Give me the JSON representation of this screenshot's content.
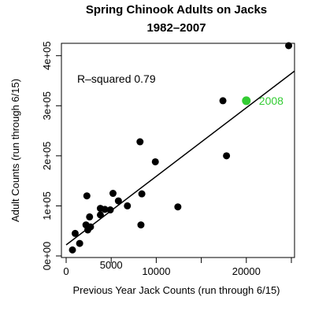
{
  "chart_data": {
    "type": "scatter",
    "title": "Spring Chinook Adults on Jacks",
    "subtitle": "1982–2007",
    "xlabel": "Previous Year Jack Counts (run through 6/15)",
    "ylabel": "Adult Counts (run through 6/15)",
    "xlim": [
      0,
      25000
    ],
    "ylim": [
      0,
      420000
    ],
    "x_ticks": [
      0,
      5000,
      10000,
      15000,
      20000,
      25000
    ],
    "x_tick_labels": [
      "0",
      "",
      "10000",
      "",
      "20000",
      ""
    ],
    "x_tick_labels_minor": [
      "",
      "5000",
      "",
      "",
      "",
      ""
    ],
    "y_ticks": [
      0,
      100000,
      200000,
      300000,
      400000
    ],
    "y_tick_labels": [
      "0e+00",
      "1e+05",
      "2e+05",
      "3e+05",
      "4e+05"
    ],
    "grid": false,
    "annotation": "R–squared 0.79",
    "points": [
      {
        "x": 700,
        "y": 12000
      },
      {
        "x": 1000,
        "y": 45000
      },
      {
        "x": 1500,
        "y": 25000
      },
      {
        "x": 2200,
        "y": 62000
      },
      {
        "x": 2300,
        "y": 120000
      },
      {
        "x": 2400,
        "y": 52000
      },
      {
        "x": 2600,
        "y": 78000
      },
      {
        "x": 2700,
        "y": 58000
      },
      {
        "x": 3800,
        "y": 82000
      },
      {
        "x": 3800,
        "y": 95000
      },
      {
        "x": 4300,
        "y": 93000
      },
      {
        "x": 4900,
        "y": 92000
      },
      {
        "x": 5200,
        "y": 125000
      },
      {
        "x": 5800,
        "y": 110000
      },
      {
        "x": 6800,
        "y": 100000
      },
      {
        "x": 8200,
        "y": 228000
      },
      {
        "x": 8300,
        "y": 62000
      },
      {
        "x": 8400,
        "y": 124000
      },
      {
        "x": 9900,
        "y": 188000
      },
      {
        "x": 12400,
        "y": 98000
      },
      {
        "x": 17400,
        "y": 310000
      },
      {
        "x": 17800,
        "y": 200000
      },
      {
        "x": 24700,
        "y": 420000
      }
    ],
    "highlight": {
      "x": 20000,
      "y": 310000,
      "label": "2008",
      "color": "#33cc33"
    },
    "regression": {
      "intercept": 22000,
      "slope": 13.7
    },
    "colors": {
      "points": "#000000",
      "line": "#000000",
      "highlight": "#33cc33"
    }
  }
}
